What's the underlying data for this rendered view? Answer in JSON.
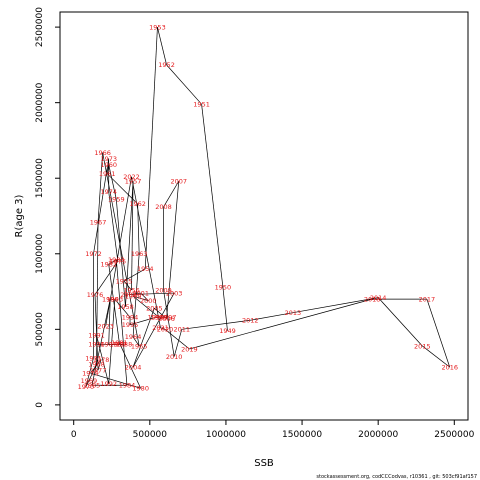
{
  "chart_data": {
    "type": "scatter",
    "xlabel": "SSB",
    "ylabel": "R(age 3)",
    "xlim": [
      -90000,
      2590000
    ],
    "ylim": [
      -100000,
      2600000
    ],
    "x_ticks": [
      0,
      500000,
      1000000,
      1500000,
      2000000,
      2500000
    ],
    "x_tick_labels": [
      "0",
      "500000",
      "1000000",
      "1500000",
      "2000000",
      "2500000"
    ],
    "y_ticks": [
      0,
      500000,
      1000000,
      1500000,
      2000000,
      2500000
    ],
    "y_tick_labels": [
      "0",
      "500000",
      "1000000",
      "1500000",
      "2000000",
      "2500000"
    ],
    "connect_points_in_year_order": true,
    "label_color": "#e41a1c",
    "line_color": "#000000",
    "points": [
      {
        "year": "1949",
        "x": 1010000,
        "y": 490000
      },
      {
        "year": "1950",
        "x": 980000,
        "y": 780000
      },
      {
        "year": "1951",
        "x": 840000,
        "y": 1990000
      },
      {
        "year": "1952",
        "x": 610000,
        "y": 2250000
      },
      {
        "year": "1953",
        "x": 550000,
        "y": 2500000
      },
      {
        "year": "1954",
        "x": 470000,
        "y": 900000
      },
      {
        "year": "1955",
        "x": 330000,
        "y": 820000
      },
      {
        "year": "1956",
        "x": 380000,
        "y": 760000
      },
      {
        "year": "1957",
        "x": 390000,
        "y": 1480000
      },
      {
        "year": "1958",
        "x": 340000,
        "y": 650000
      },
      {
        "year": "1959",
        "x": 280000,
        "y": 1360000
      },
      {
        "year": "1960",
        "x": 230000,
        "y": 1590000
      },
      {
        "year": "1961",
        "x": 220000,
        "y": 1530000
      },
      {
        "year": "1962",
        "x": 420000,
        "y": 1330000
      },
      {
        "year": "1963",
        "x": 430000,
        "y": 1000000
      },
      {
        "year": "1964",
        "x": 390000,
        "y": 450000
      },
      {
        "year": "1965",
        "x": 430000,
        "y": 390000
      },
      {
        "year": "1966",
        "x": 190000,
        "y": 1670000
      },
      {
        "year": "1967",
        "x": 160000,
        "y": 1210000
      },
      {
        "year": "1968",
        "x": 150000,
        "y": 270000
      },
      {
        "year": "1969",
        "x": 100000,
        "y": 160000
      },
      {
        "year": "1970",
        "x": 80000,
        "y": 120000
      },
      {
        "year": "1971",
        "x": 130000,
        "y": 310000
      },
      {
        "year": "1972",
        "x": 130000,
        "y": 1000000
      },
      {
        "year": "1973",
        "x": 230000,
        "y": 1630000
      },
      {
        "year": "1974",
        "x": 230000,
        "y": 1410000
      },
      {
        "year": "1975",
        "x": 290000,
        "y": 950000
      },
      {
        "year": "1976",
        "x": 140000,
        "y": 730000
      },
      {
        "year": "1977",
        "x": 160000,
        "y": 230000
      },
      {
        "year": "1978",
        "x": 180000,
        "y": 300000
      },
      {
        "year": "1979",
        "x": 110000,
        "y": 210000
      },
      {
        "year": "1980",
        "x": 440000,
        "y": 110000
      },
      {
        "year": "1981",
        "x": 300000,
        "y": 410000
      },
      {
        "year": "1982",
        "x": 230000,
        "y": 930000
      },
      {
        "year": "1983",
        "x": 280000,
        "y": 960000
      },
      {
        "year": "1984",
        "x": 350000,
        "y": 130000
      },
      {
        "year": "1985",
        "x": 120000,
        "y": 130000
      },
      {
        "year": "1986",
        "x": 240000,
        "y": 700000
      },
      {
        "year": "1987",
        "x": 230000,
        "y": 400000
      },
      {
        "year": "1988",
        "x": 330000,
        "y": 400000
      },
      {
        "year": "1989",
        "x": 290000,
        "y": 400000
      },
      {
        "year": "1990",
        "x": 150000,
        "y": 400000
      },
      {
        "year": "1991",
        "x": 150000,
        "y": 460000
      },
      {
        "year": "1992",
        "x": 230000,
        "y": 140000
      },
      {
        "year": "1993",
        "x": 270000,
        "y": 700000
      },
      {
        "year": "1994",
        "x": 370000,
        "y": 580000
      },
      {
        "year": "1995",
        "x": 370000,
        "y": 530000
      },
      {
        "year": "1996",
        "x": 540000,
        "y": 580000
      },
      {
        "year": "1997",
        "x": 620000,
        "y": 580000
      },
      {
        "year": "1998",
        "x": 560000,
        "y": 580000
      },
      {
        "year": "1999",
        "x": 390000,
        "y": 720000
      },
      {
        "year": "2000",
        "x": 490000,
        "y": 690000
      },
      {
        "year": "2001",
        "x": 440000,
        "y": 740000
      },
      {
        "year": "2002",
        "x": 360000,
        "y": 730000
      },
      {
        "year": "2003",
        "x": 660000,
        "y": 740000
      },
      {
        "year": "2004",
        "x": 390000,
        "y": 250000
      },
      {
        "year": "2005",
        "x": 530000,
        "y": 640000
      },
      {
        "year": "2006",
        "x": 610000,
        "y": 570000
      },
      {
        "year": "2007",
        "x": 690000,
        "y": 1480000
      },
      {
        "year": "2008",
        "x": 590000,
        "y": 1310000
      },
      {
        "year": "2009",
        "x": 590000,
        "y": 760000
      },
      {
        "year": "2010",
        "x": 660000,
        "y": 320000
      },
      {
        "year": "2011",
        "x": 710000,
        "y": 500000
      },
      {
        "year": "2012",
        "x": 1160000,
        "y": 560000
      },
      {
        "year": "2013",
        "x": 1440000,
        "y": 610000
      },
      {
        "year": "2014",
        "x": 2000000,
        "y": 710000
      },
      {
        "year": "2015",
        "x": 2290000,
        "y": 390000
      },
      {
        "year": "2016",
        "x": 2470000,
        "y": 250000
      },
      {
        "year": "2017",
        "x": 2320000,
        "y": 700000
      },
      {
        "year": "2018",
        "x": 1960000,
        "y": 700000
      },
      {
        "year": "2019",
        "x": 760000,
        "y": 370000
      },
      {
        "year": "2020",
        "x": 600000,
        "y": 500000
      },
      {
        "year": "2021",
        "x": 570000,
        "y": 510000
      },
      {
        "year": "2022",
        "x": 380000,
        "y": 1510000
      },
      {
        "year": "2023",
        "x": 210000,
        "y": 520000
      }
    ]
  },
  "footer_text": "stockassessment.org, codCCCodvas, r10361 , git: 503cf91af157"
}
